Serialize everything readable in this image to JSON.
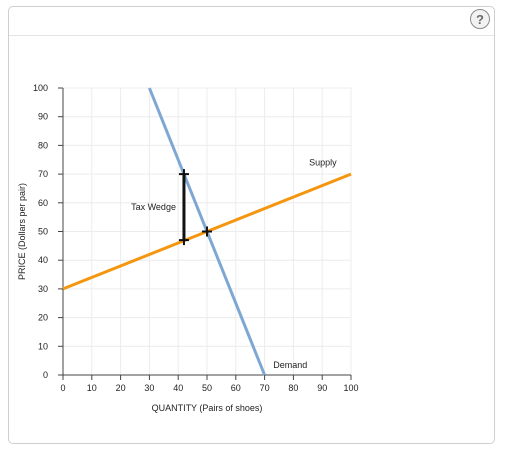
{
  "toolbar": {
    "help_icon": "help-circle-icon",
    "help_glyph": "?"
  },
  "chart_data": {
    "type": "line",
    "xlabel": "QUANTITY (Pairs of shoes)",
    "ylabel": "PRICE (Dollars per pair)",
    "xlim": [
      0,
      100
    ],
    "ylim": [
      0,
      100
    ],
    "xticks": [
      0,
      10,
      20,
      30,
      40,
      50,
      60,
      70,
      80,
      90,
      100
    ],
    "yticks": [
      0,
      10,
      20,
      30,
      40,
      50,
      60,
      70,
      80,
      90,
      100
    ],
    "grid": true,
    "series": [
      {
        "name": "Demand",
        "color": "#7ea8d3",
        "points": [
          [
            30,
            100
          ],
          [
            70,
            0
          ]
        ]
      },
      {
        "name": "Supply",
        "color": "#f4960f",
        "points": [
          [
            0,
            30
          ],
          [
            100,
            70
          ]
        ]
      }
    ],
    "markers": [
      {
        "name": "buyer-price-point",
        "x": 42,
        "y": 70
      },
      {
        "name": "seller-price-point",
        "x": 42,
        "y": 47
      },
      {
        "name": "equilibrium-point",
        "x": 50,
        "y": 50
      }
    ],
    "tax_wedge": {
      "label": "Tax Wedge",
      "x": 42,
      "y_low": 47,
      "y_high": 70
    }
  }
}
